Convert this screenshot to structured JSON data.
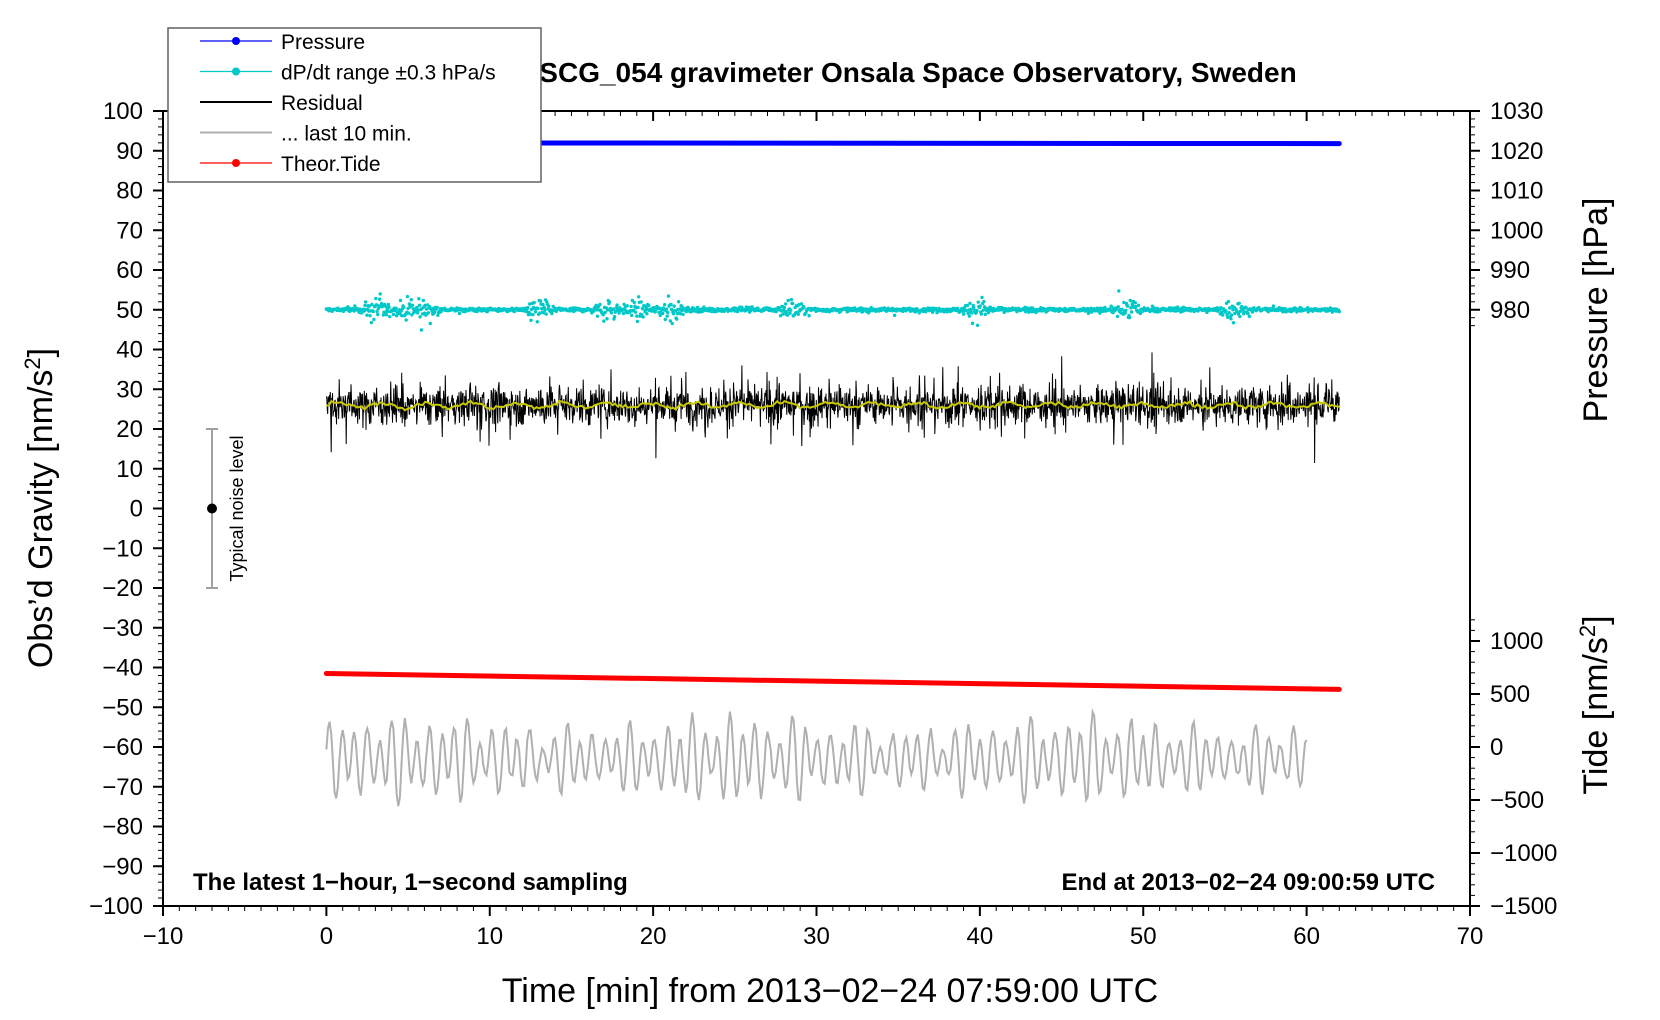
{
  "chart_data": {
    "type": "line",
    "title": "SCG_054 gravimeter Onsala Space Observatory, Sweden",
    "xlabel": "Time [min] from 2013−02−24 07:59:00 UTC",
    "ylabel_left": "Obs’d Gravity [nm/s",
    "ylabel_right_pressure": "Pressure [hPa]",
    "ylabel_right_tide": "Tide [nm/s",
    "unit_superscript": "2",
    "unit_close": "]",
    "xlim": [
      -10,
      70
    ],
    "ylim_left": [
      -100,
      100
    ],
    "pressure_axis_range": [
      970,
      1030
    ],
    "tide_axis_range": [
      -1500,
      1500
    ],
    "x_ticks": [
      "−10",
      "0",
      "10",
      "20",
      "30",
      "40",
      "50",
      "60",
      "70"
    ],
    "x_tick_values": [
      -10,
      0,
      10,
      20,
      30,
      40,
      50,
      60,
      70
    ],
    "y_ticks_left": [
      "100",
      "90",
      "80",
      "70",
      "60",
      "50",
      "40",
      "30",
      "20",
      "10",
      "0",
      "−10",
      "−20",
      "−30",
      "−40",
      "−50",
      "−60",
      "−70",
      "−80",
      "−90",
      "−100"
    ],
    "y_tick_values_left": [
      100,
      90,
      80,
      70,
      60,
      50,
      40,
      30,
      20,
      10,
      0,
      -10,
      -20,
      -30,
      -40,
      -50,
      -60,
      -70,
      -80,
      -90,
      -100
    ],
    "pressure_ticks": [
      "1030",
      "1020",
      "1010",
      "1000",
      "990",
      "980"
    ],
    "pressure_tick_values": [
      1030,
      1020,
      1010,
      1000,
      990,
      980
    ],
    "tide_ticks": [
      "1000",
      "500",
      "0",
      "−500",
      "−1000",
      "−1500"
    ],
    "tide_tick_values": [
      1000,
      500,
      0,
      -500,
      -1000,
      -1500
    ],
    "series": [
      {
        "name": "Pressure",
        "color": "#0000ff",
        "style": "line-dots",
        "x_range": [
          0,
          62
        ],
        "value_plot_units": [
          92.0,
          91.8
        ]
      },
      {
        "name": "dP/dt range ±0.3 hPa/s",
        "color": "#00c8c8",
        "style": "dots",
        "center_plot_units": 50,
        "spread_plot_units": 2,
        "outlier_max": 62,
        "outlier_min": 43
      },
      {
        "name": "Residual",
        "color": "#000000",
        "style": "line",
        "center_plot_units": 26,
        "amplitude_plot_units": 14
      },
      {
        "name": "... last 10 min.",
        "color": "#b0b0b0",
        "style": "line",
        "x_range": [
          0,
          60
        ],
        "center_plot_units": -63,
        "amplitude_plot_units": 10
      },
      {
        "name": "Theor.Tide",
        "color": "#ff0000",
        "style": "line-dots",
        "x_range": [
          0,
          62
        ],
        "value_plot_units": [
          -41.5,
          -45.5
        ]
      }
    ],
    "smoothed_residual_color": "#c8c800",
    "noise_bar": {
      "label": "Typical noise level",
      "x": -7,
      "center": 0,
      "low": -20,
      "high": 20
    },
    "note_left": "The latest 1−hour, 1−second sampling",
    "note_right": "End at 2013−02−24 09:00:59 UTC",
    "legend_position": "top-left"
  }
}
